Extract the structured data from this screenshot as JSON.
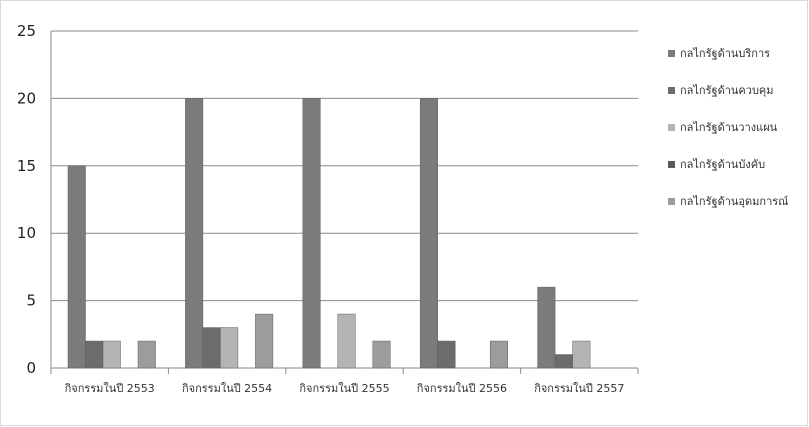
{
  "chart_data": {
    "type": "bar",
    "title": "",
    "xlabel": "",
    "ylabel": "",
    "ylim": [
      0,
      25
    ],
    "yticks": [
      0,
      5,
      10,
      15,
      20,
      25
    ],
    "grid": true,
    "legend_position": "right",
    "categories": [
      "กิจกรรมในปี 2553",
      "กิจกรรมในปี 2554",
      "กิจกรรมในปี 2555",
      "กิจกรรมในปี 2556",
      "กิจกรรมในปี 2557"
    ],
    "series": [
      {
        "name": "กลไกรัฐด้านบริการ",
        "color": "#7b7b7b",
        "values": [
          15,
          20,
          20,
          20,
          6
        ]
      },
      {
        "name": "กลไกรัฐด้านควบคุม",
        "color": "#6c6c6c",
        "values": [
          2,
          3,
          0,
          2,
          1
        ]
      },
      {
        "name": "กลไกรัฐด้านวางแผน",
        "color": "#b4b4b4",
        "values": [
          2,
          3,
          4,
          0,
          2
        ]
      },
      {
        "name": "กลไกรัฐด้านบังคับ",
        "color": "#5a5a5a",
        "values": [
          0,
          0,
          0,
          0,
          0
        ]
      },
      {
        "name": "กลไกรัฐด้านอุดมการณ์",
        "color": "#9c9c9c",
        "values": [
          2,
          4,
          2,
          2,
          0
        ]
      }
    ]
  }
}
